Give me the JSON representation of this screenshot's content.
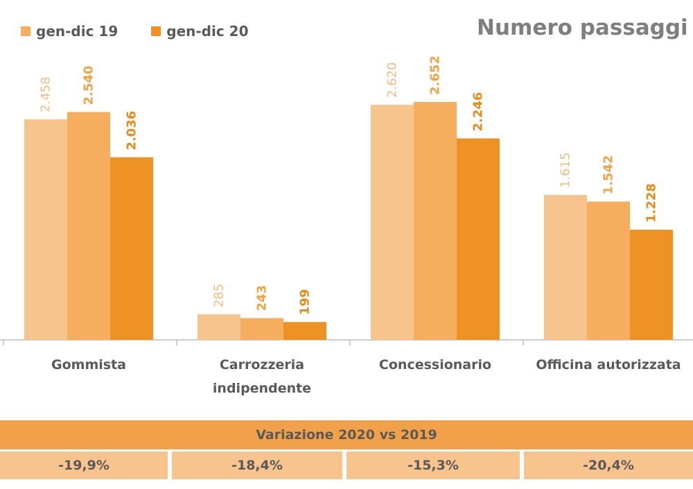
{
  "chart_data": {
    "type": "bar",
    "title": "Numero passaggi p",
    "categories": [
      "Gommista",
      "Carrozzeria indipendente",
      "Concessionario",
      "Officina autorizzata"
    ],
    "category_lines": [
      [
        "Gommista"
      ],
      [
        "Carrozzeria",
        "indipendente"
      ],
      [
        "Concessionario"
      ],
      [
        "Officina autorizzata"
      ]
    ],
    "series": [
      {
        "values": [
          2458,
          285,
          2620,
          1615
        ],
        "labels": [
          "2.458",
          "285",
          "2.620",
          "1.615"
        ],
        "color": "#f7c48e",
        "label_color": "#f5bd80"
      },
      {
        "name": "gen-dic 19",
        "values": [
          2540,
          243,
          2652,
          1542
        ],
        "labels": [
          "2.540",
          "243",
          "2.652",
          "1.542"
        ],
        "color": "#f4ae5e",
        "label_color": "#f0a347"
      },
      {
        "name": "gen-dic 20",
        "values": [
          2036,
          199,
          2246,
          1228
        ],
        "labels": [
          "2.036",
          "199",
          "2.246",
          "1.228"
        ],
        "color": "#ef9226",
        "label_color": "#e98a1a"
      }
    ],
    "ylim": [
      0,
      3000
    ],
    "grid": false,
    "legend": "top-left"
  },
  "legend": [
    {
      "label": "gen-dic 19",
      "color": "#f4ae5e"
    },
    {
      "label": "gen-dic 20",
      "color": "#ef9226"
    }
  ],
  "variation": {
    "header": "Variazione 2020 vs 2019",
    "values": [
      "-19,9%",
      "-18,4%",
      "-15,3%",
      "-20,4%"
    ]
  }
}
